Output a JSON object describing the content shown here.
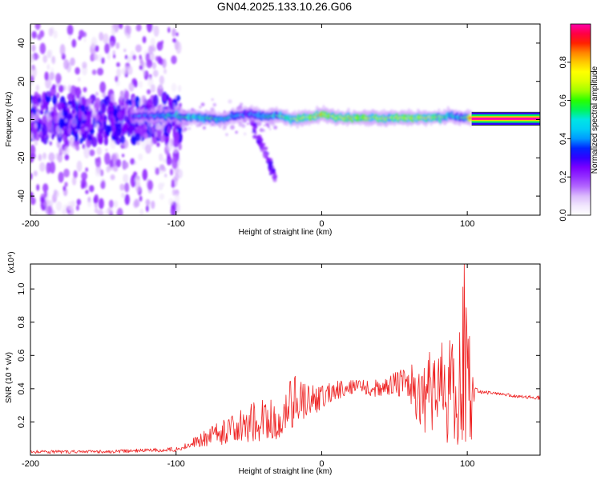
{
  "figure": {
    "title": "GN04.2025.133.10.26.G06"
  },
  "chart_data": [
    {
      "type": "heatmap",
      "name": "spectrogram",
      "xlabel": "Height of straight line (km)",
      "ylabel": "Frequency (Hz)",
      "xlim": [
        -200,
        150
      ],
      "ylim": [
        -50,
        50
      ],
      "xticks": [
        -200,
        -100,
        0,
        100
      ],
      "xtick_labels": [
        "-200",
        "-100",
        "0",
        "100"
      ],
      "yticks": [
        -40,
        -20,
        0,
        20,
        40
      ],
      "ytick_labels": [
        "-40",
        "-20",
        "0",
        "20",
        "40"
      ],
      "colorbar": {
        "label": "Normalized spectral amplitude",
        "range": [
          0,
          1
        ],
        "ticks": [
          0,
          0.2,
          0.4,
          0.6,
          0.8
        ],
        "tick_labels": [
          "0.0",
          "0.2",
          "0.4",
          "0.6",
          "0.8"
        ],
        "colormap": [
          "#ffffff",
          "#e8d7fb",
          "#a64cff",
          "#7a00ff",
          "#0000ff",
          "#00bfff",
          "#00e5e5",
          "#00ff00",
          "#c8ff00",
          "#ffff00",
          "#ffa500",
          "#ff0000",
          "#ff00aa"
        ]
      },
      "ridge": {
        "x": [
          -130,
          -120,
          -110,
          -100,
          -90,
          -80,
          -70,
          -60,
          -50,
          -40,
          -30,
          -20,
          -10,
          0,
          10,
          20,
          30,
          40,
          50,
          60,
          70,
          80,
          90,
          95,
          100,
          103,
          110,
          120,
          130,
          140,
          150
        ],
        "y": [
          2,
          2,
          2,
          2,
          1,
          1,
          0,
          2,
          3,
          2,
          2,
          0,
          1,
          3,
          1,
          1,
          1,
          1,
          1,
          1,
          1,
          1,
          2,
          1,
          1,
          0.5,
          0.5,
          0.5,
          0.5,
          0.5,
          0.5
        ],
        "amplitude": [
          0.35,
          0.4,
          0.45,
          0.5,
          0.55,
          0.55,
          0.5,
          0.45,
          0.4,
          0.5,
          0.55,
          0.65,
          0.7,
          0.75,
          0.72,
          0.72,
          0.72,
          0.72,
          0.72,
          0.72,
          0.72,
          0.7,
          0.5,
          0.55,
          0.55,
          1.0,
          1.0,
          1.0,
          1.0,
          1.0,
          1.0
        ]
      },
      "branch": {
        "x": [
          -50,
          -45,
          -40,
          -35,
          -32
        ],
        "y": [
          6,
          -8,
          -15,
          -25,
          -30
        ],
        "amplitude": 0.25
      }
    },
    {
      "type": "line",
      "name": "snr",
      "xlabel": "Height of straight line (km)",
      "ylabel": "SNR (10 * v/v)",
      "scale_label": "(x10⁴)",
      "xlim": [
        -200,
        150
      ],
      "ylim": [
        0,
        1.15
      ],
      "xticks": [
        -200,
        -100,
        0,
        100
      ],
      "xtick_labels": [
        "-200",
        "-100",
        "0",
        "100"
      ],
      "yticks": [
        0.2,
        0.4,
        0.6,
        0.8,
        1.0
      ],
      "ytick_labels": [
        "0.2",
        "0.4",
        "0.6",
        "0.8",
        "1.0"
      ],
      "color": "#ee2222",
      "envelope": {
        "x": [
          -200,
          -150,
          -120,
          -100,
          -90,
          -80,
          -70,
          -60,
          -50,
          -40,
          -30,
          -25,
          -20,
          -15,
          -10,
          0,
          10,
          20,
          30,
          40,
          50,
          60,
          70,
          80,
          85,
          90,
          95,
          98,
          100,
          103,
          105,
          110,
          120,
          130,
          140,
          150
        ],
        "low": [
          0.01,
          0.01,
          0.02,
          0.02,
          0.05,
          0.05,
          0.06,
          0.08,
          0.08,
          0.08,
          0.06,
          0.1,
          0.15,
          0.18,
          0.22,
          0.27,
          0.33,
          0.37,
          0.36,
          0.35,
          0.35,
          0.3,
          0.12,
          0.1,
          0.08,
          0.06,
          0.06,
          0.08,
          0.06,
          0.05,
          0.38,
          0.37,
          0.36,
          0.35,
          0.34,
          0.33
        ],
        "high": [
          0.03,
          0.03,
          0.04,
          0.05,
          0.1,
          0.15,
          0.2,
          0.25,
          0.3,
          0.35,
          0.32,
          0.35,
          0.52,
          0.45,
          0.42,
          0.42,
          0.45,
          0.45,
          0.46,
          0.45,
          0.5,
          0.55,
          0.6,
          0.65,
          0.7,
          0.7,
          0.75,
          1.15,
          0.75,
          0.7,
          0.41,
          0.39,
          0.38,
          0.37,
          0.36,
          0.36
        ]
      }
    }
  ]
}
